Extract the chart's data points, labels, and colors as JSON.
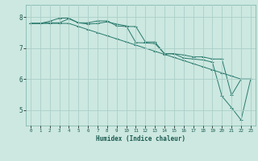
{
  "xlabel": "Humidex (Indice chaleur)",
  "ylabel": "",
  "bg_color": "#cce8e0",
  "grid_color": "#aacfc8",
  "line_color": "#2a7a6e",
  "xlim": [
    -0.5,
    23.5
  ],
  "ylim": [
    4.5,
    8.4
  ],
  "yticks": [
    5,
    6,
    7,
    8
  ],
  "xticks": [
    0,
    1,
    2,
    3,
    4,
    5,
    6,
    7,
    8,
    9,
    10,
    11,
    12,
    13,
    14,
    15,
    16,
    17,
    18,
    19,
    20,
    21,
    22,
    23
  ],
  "series_x": [
    0,
    1,
    2,
    3,
    4,
    5,
    6,
    7,
    8,
    9,
    10,
    11,
    12,
    13,
    14,
    15,
    16,
    17,
    18,
    19,
    20,
    21,
    22,
    23
  ],
  "series": [
    [
      7.8,
      7.8,
      7.87,
      7.97,
      7.97,
      7.82,
      7.78,
      7.8,
      7.85,
      7.78,
      7.72,
      7.18,
      7.17,
      7.15,
      6.82,
      6.82,
      6.78,
      6.72,
      6.72,
      6.65,
      6.65,
      5.48,
      6.0,
      6.0
    ],
    [
      7.8,
      7.8,
      7.82,
      7.82,
      7.95,
      7.82,
      7.82,
      7.88,
      7.88,
      7.72,
      7.7,
      7.7,
      7.2,
      7.2,
      6.82,
      6.82,
      6.68,
      6.65,
      6.62,
      6.55,
      5.45,
      5.08,
      4.68,
      6.0
    ],
    [
      7.8,
      7.8,
      7.8,
      7.8,
      7.8,
      7.7,
      7.6,
      7.5,
      7.4,
      7.3,
      7.2,
      7.1,
      7.0,
      6.9,
      6.8,
      6.7,
      6.6,
      6.5,
      6.4,
      6.3,
      6.2,
      6.1,
      6.0,
      6.0
    ]
  ]
}
